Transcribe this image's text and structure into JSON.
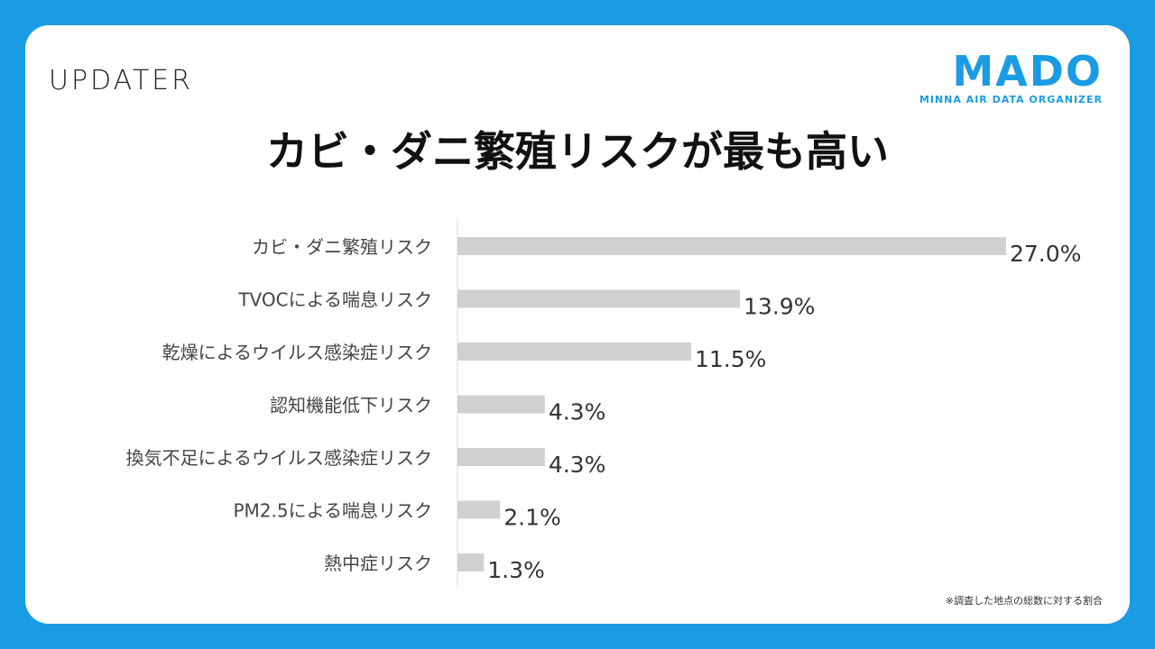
{
  "logos": {
    "updater": "UPDATER",
    "mado": "MADO",
    "mado_tagline": "MINNA AIR DATA ORGANIZER"
  },
  "colors": {
    "background": "#1b9be3",
    "bar": "#d0d0d0",
    "brand": "#1b9be3"
  },
  "chart_data": {
    "type": "bar",
    "orientation": "horizontal",
    "title": "カビ・ダニ繁殖リスクが最も高い",
    "categories": [
      "カビ・ダニ繁殖リスク",
      "TVOCによる喘息リスク",
      "乾燥によるウイルス感染症リスク",
      "認知機能低下リスク",
      "換気不足によるウイルス感染症リスク",
      "PM2.5による喘息リスク",
      "熱中症リスク"
    ],
    "values": [
      27.0,
      13.9,
      11.5,
      4.3,
      4.3,
      2.1,
      1.3
    ],
    "data_labels": [
      "27.0%",
      "13.9%",
      "11.5%",
      "4.3%",
      "4.3%",
      "2.1%",
      "1.3%"
    ],
    "unit": "%",
    "xlim": [
      0,
      27.0
    ],
    "grid": false,
    "legend": "none"
  },
  "footnote": "※調査した地点の総数に対する割合"
}
